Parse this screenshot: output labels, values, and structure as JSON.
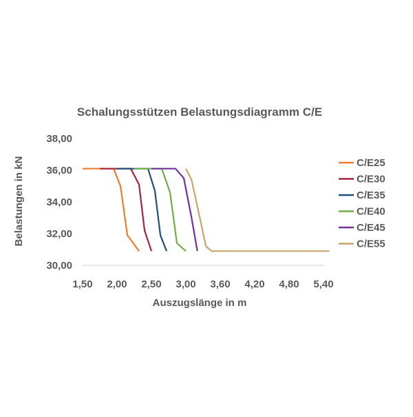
{
  "chart_data": {
    "type": "line",
    "title": "Schalungsstützen Belastungsdiagramm C/E",
    "xlabel": "Auszugslänge in m",
    "ylabel": "Belastungen in kN",
    "x_tick_labels": [
      "1,50",
      "2,00",
      "2,50",
      "3,00",
      "3,60",
      "4,20",
      "4,80",
      "5,40"
    ],
    "y_tick_labels": [
      "30,00",
      "32,00",
      "34,00",
      "36,00",
      "38,00"
    ],
    "ylim": [
      30,
      38
    ],
    "grid": false,
    "legend_position": "right",
    "series": [
      {
        "name": "C/E25",
        "color": "#ED7D31",
        "points": [
          [
            1.5,
            36.1
          ],
          [
            1.95,
            36.1
          ],
          [
            2.05,
            35.0
          ],
          [
            2.15,
            31.9
          ],
          [
            2.32,
            30.9
          ]
        ]
      },
      {
        "name": "C/E30",
        "color": "#A5243D",
        "points": [
          [
            1.75,
            36.1
          ],
          [
            2.2,
            36.1
          ],
          [
            2.32,
            35.1
          ],
          [
            2.4,
            32.2
          ],
          [
            2.5,
            30.9
          ]
        ]
      },
      {
        "name": "C/E35",
        "color": "#1F4E79",
        "points": [
          [
            2.0,
            36.1
          ],
          [
            2.45,
            36.1
          ],
          [
            2.55,
            34.7
          ],
          [
            2.63,
            31.9
          ],
          [
            2.72,
            30.9
          ]
        ]
      },
      {
        "name": "C/E40",
        "color": "#70AD47",
        "points": [
          [
            2.25,
            36.1
          ],
          [
            2.65,
            36.1
          ],
          [
            2.77,
            34.6
          ],
          [
            2.87,
            31.4
          ],
          [
            3.0,
            30.9
          ]
        ]
      },
      {
        "name": "C/E45",
        "color": "#7030A0",
        "points": [
          [
            2.5,
            36.1
          ],
          [
            2.85,
            36.1
          ],
          [
            2.97,
            35.5
          ],
          [
            3.1,
            33.0
          ],
          [
            3.2,
            30.9
          ]
        ]
      },
      {
        "name": "C/E55",
        "color": "#C9A46B",
        "points": [
          [
            3.0,
            36.1
          ],
          [
            3.1,
            35.4
          ],
          [
            3.35,
            31.2
          ],
          [
            3.45,
            30.9
          ],
          [
            5.5,
            30.9
          ]
        ]
      }
    ]
  }
}
